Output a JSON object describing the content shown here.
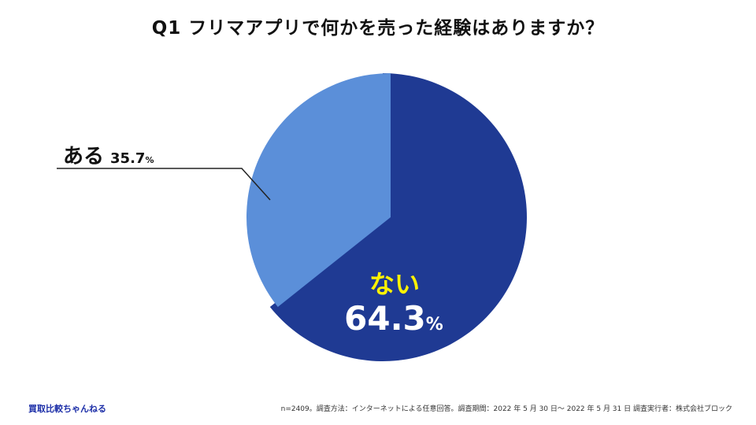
{
  "title": "Q1 フリマアプリで何かを売った経験はありますか？",
  "chart_data": {
    "type": "pie",
    "title": "Q1 フリマアプリで何かを売った経験はありますか？",
    "slices": [
      {
        "label": "ない",
        "value": 64.3,
        "display": "64.3",
        "unit": "%",
        "color": "#1f3a93",
        "label_color": "#fff200"
      },
      {
        "label": "ある",
        "value": 35.7,
        "display": "35.7",
        "unit": "%",
        "color": "#5b8fd9"
      }
    ],
    "start": "12 o'clock",
    "direction": "clockwise"
  },
  "labels": {
    "aru": {
      "name": "ある",
      "value": "35.7",
      "unit": "%"
    },
    "nai": {
      "name": "ない",
      "value": "64.3",
      "unit": "%"
    }
  },
  "brand": "買取比較ちゃんねる",
  "footnote": "n=2409。調査方法：インターネットによる任意回答。調査期間：2022 年 5 月 30 日～ 2022 年 5 月 31 日 調査実行者：株式会社ブロック"
}
